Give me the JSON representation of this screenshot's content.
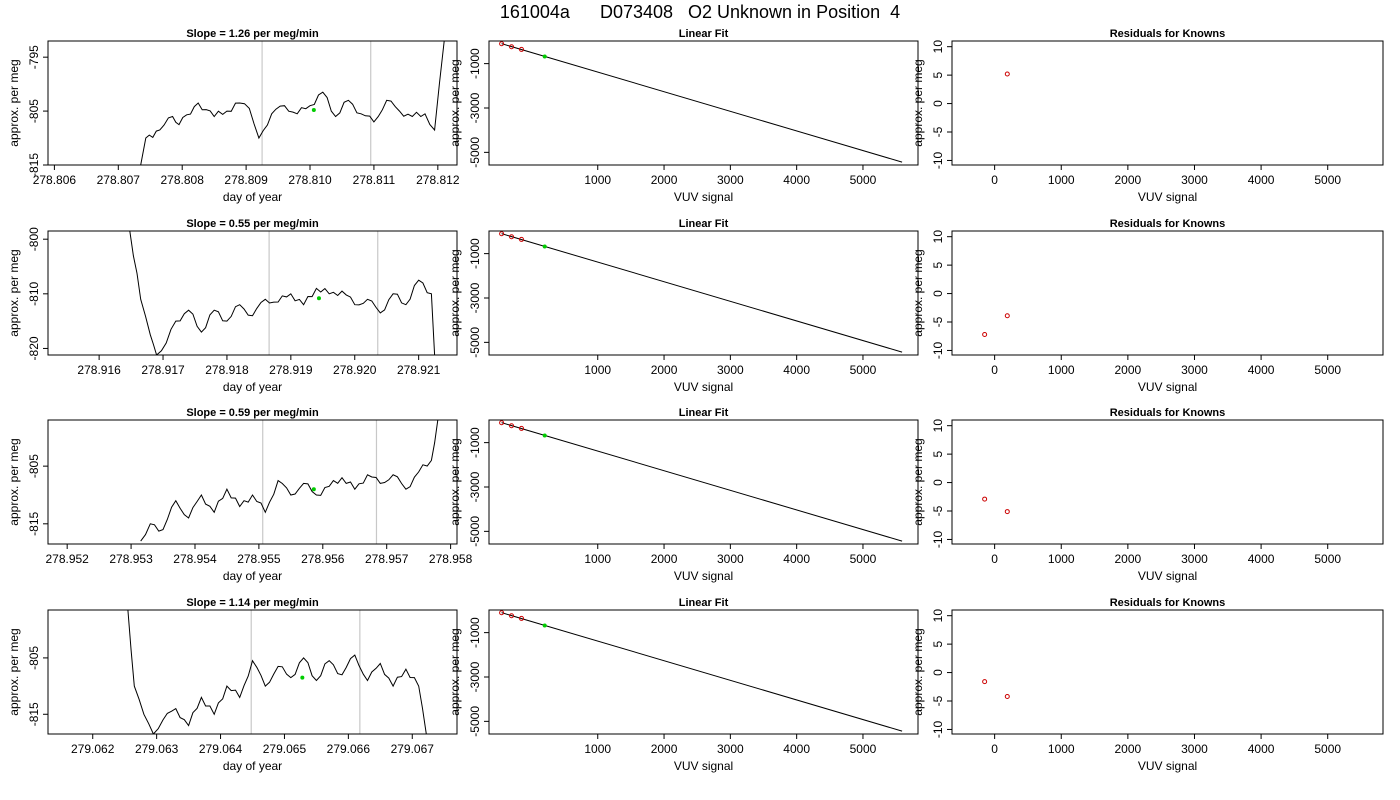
{
  "header": {
    "title": "161004a      D073408   O2 Unknown in Position  4"
  },
  "colors": {
    "trace": "#000000",
    "vline": "#c8c8c8",
    "marker": "#00cc00",
    "known_points": "#cc0000"
  },
  "chart_data": [
    {
      "type": "line",
      "row": 1,
      "panel": "time-series",
      "title": "Slope =  1.26  per meg/min",
      "xlabel": "day of year",
      "ylabel": "approx. per meg",
      "xlim": [
        278.8059,
        278.8123
      ],
      "ylim": [
        -815,
        -792
      ],
      "xticks": [
        "278.806",
        "278.807",
        "278.808",
        "278.809",
        "278.810",
        "278.811",
        "278.812"
      ],
      "yticks": [
        "-815",
        "-805",
        "-795"
      ],
      "vlines": [
        278.80925,
        278.81095
      ],
      "marker": {
        "x": 278.81006,
        "y": -804.8
      },
      "x": [
        278.80735,
        278.80743,
        278.80765,
        278.80785,
        278.80795,
        278.80825,
        278.8085,
        278.8087,
        278.8089,
        278.80905,
        278.8092,
        278.8094,
        278.8096,
        278.8098,
        278.81,
        278.8102,
        278.8104,
        278.8106,
        278.8108,
        278.811,
        278.8112,
        278.8114,
        278.8116,
        278.8118,
        278.81195,
        278.8121
      ],
      "y": [
        -815,
        -810,
        -808.5,
        -806,
        -807.5,
        -803.5,
        -806,
        -805,
        -803.5,
        -804.5,
        -810,
        -805.5,
        -804,
        -805.5,
        -804,
        -801.5,
        -806,
        -803,
        -805.5,
        -807,
        -803,
        -805,
        -806,
        -805.5,
        -808.5,
        -792
      ]
    },
    {
      "type": "line",
      "row": 1,
      "panel": "linear-fit",
      "title": "Linear Fit",
      "xlabel": "VUV signal",
      "ylabel": "approx. per meg",
      "xlim": [
        -640,
        5830
      ],
      "ylim": [
        -5570,
        20
      ],
      "xticks": [
        "1000",
        "2000",
        "3000",
        "4000",
        "5000"
      ],
      "xtick_values": [
        1000,
        2000,
        3000,
        4000,
        5000
      ],
      "yticks": [
        "-5000",
        "-3000",
        "-1000"
      ],
      "ytick_values": [
        -5000,
        -3000,
        -1000
      ],
      "fit_line": {
        "x": [
          -450,
          5590
        ],
        "y": [
          -100,
          -5440
        ]
      },
      "knowns": {
        "x": [
          -450,
          -300,
          -150
        ],
        "y": [
          -105,
          -240,
          -360
        ]
      },
      "unknown": {
        "x": 200,
        "y": -680
      }
    },
    {
      "type": "scatter",
      "row": 1,
      "panel": "residuals",
      "title": "Residuals for Knowns",
      "xlabel": "VUV signal",
      "ylabel": "approx. per meg",
      "xlim": [
        -640,
        5830
      ],
      "ylim": [
        -10.8,
        11
      ],
      "xticks": [
        "0",
        "1000",
        "2000",
        "3000",
        "4000",
        "5000"
      ],
      "xtick_values": [
        0,
        1000,
        2000,
        3000,
        4000,
        5000
      ],
      "yticks": [
        "-10",
        "-5",
        "0",
        "5",
        "10"
      ],
      "ytick_values": [
        -10,
        -5,
        0,
        5,
        10
      ],
      "points": {
        "x": [
          190
        ],
        "y": [
          5.2
        ]
      }
    },
    {
      "type": "line",
      "row": 2,
      "panel": "time-series",
      "title": "Slope =  0.55  per meg/min",
      "xlabel": "day of year",
      "ylabel": "approx. per meg",
      "xlim": [
        278.9152,
        278.9216
      ],
      "ylim": [
        -821.2,
        -798.5
      ],
      "xticks": [
        "278.916",
        "278.917",
        "278.918",
        "278.919",
        "278.920",
        "278.921"
      ],
      "yticks": [
        "-820",
        "-810",
        "-800"
      ],
      "vlines": [
        278.91866,
        278.92036
      ],
      "marker": {
        "x": 278.91944,
        "y": -810.8
      },
      "x": [
        278.91648,
        278.91665,
        278.9168,
        278.9169,
        278.91705,
        278.9172,
        278.9174,
        278.9176,
        278.9178,
        278.918,
        278.9182,
        278.9184,
        278.9186,
        278.9188,
        278.919,
        278.9192,
        278.9194,
        278.9196,
        278.9198,
        278.92,
        278.9202,
        278.9204,
        278.9206,
        278.9208,
        278.921,
        278.9212,
        278.92125
      ],
      "y": [
        -798.5,
        -811,
        -817.5,
        -821.2,
        -819,
        -815,
        -813,
        -817,
        -813,
        -815,
        -812,
        -814,
        -811,
        -811.5,
        -810,
        -812,
        -809,
        -810,
        -809.5,
        -812,
        -811,
        -813.5,
        -810,
        -812,
        -807.5,
        -810,
        -821.2
      ]
    },
    {
      "type": "line",
      "row": 2,
      "panel": "linear-fit",
      "title": "Linear Fit",
      "xlabel": "VUV signal",
      "ylabel": "approx. per meg",
      "xlim": [
        -640,
        5830
      ],
      "ylim": [
        -5570,
        20
      ],
      "xticks": [
        "1000",
        "2000",
        "3000",
        "4000",
        "5000"
      ],
      "xtick_values": [
        1000,
        2000,
        3000,
        4000,
        5000
      ],
      "yticks": [
        "-5000",
        "-3000",
        "-1000"
      ],
      "ytick_values": [
        -5000,
        -3000,
        -1000
      ],
      "fit_line": {
        "x": [
          -450,
          5590
        ],
        "y": [
          -100,
          -5440
        ]
      },
      "knowns": {
        "x": [
          -450,
          -300,
          -150
        ],
        "y": [
          -105,
          -240,
          -360
        ]
      },
      "unknown": {
        "x": 200,
        "y": -680
      }
    },
    {
      "type": "scatter",
      "row": 2,
      "panel": "residuals",
      "title": "Residuals for Knowns",
      "xlabel": "VUV signal",
      "ylabel": "approx. per meg",
      "xlim": [
        -640,
        5830
      ],
      "ylim": [
        -10.8,
        11
      ],
      "xticks": [
        "0",
        "1000",
        "2000",
        "3000",
        "4000",
        "5000"
      ],
      "xtick_values": [
        0,
        1000,
        2000,
        3000,
        4000,
        5000
      ],
      "yticks": [
        "-10",
        "-5",
        "0",
        "5",
        "10"
      ],
      "ytick_values": [
        -10,
        -5,
        0,
        5,
        10
      ],
      "points": {
        "x": [
          -150,
          190
        ],
        "y": [
          -7.2,
          -3.9
        ]
      }
    },
    {
      "type": "line",
      "row": 3,
      "panel": "time-series",
      "title": "Slope =  0.59  per meg/min",
      "xlabel": "day of year",
      "ylabel": "approx. per meg",
      "xlim": [
        278.9517,
        278.9581
      ],
      "ylim": [
        -818.5,
        -797
      ],
      "xticks": [
        "278.952",
        "278.953",
        "278.954",
        "278.955",
        "278.956",
        "278.957",
        "278.958"
      ],
      "yticks": [
        "-815",
        "-805"
      ],
      "vlines": [
        278.95506,
        278.95684
      ],
      "marker": {
        "x": 278.95586,
        "y": -809
      },
      "x": [
        278.95315,
        278.9533,
        278.9535,
        278.9537,
        278.9539,
        278.9541,
        278.9543,
        278.9545,
        278.9547,
        278.9549,
        278.9551,
        278.9553,
        278.9555,
        278.9557,
        278.9559,
        278.9561,
        278.9563,
        278.9565,
        278.9567,
        278.9569,
        278.9571,
        278.9573,
        278.9575,
        278.9577,
        278.9578
      ],
      "y": [
        -818,
        -815,
        -816,
        -811,
        -814,
        -810,
        -813,
        -809,
        -812,
        -810,
        -813,
        -807.5,
        -810,
        -808,
        -810,
        -808.5,
        -807,
        -809,
        -806.5,
        -808,
        -806.5,
        -809,
        -806,
        -804,
        -797
      ]
    },
    {
      "type": "line",
      "row": 3,
      "panel": "linear-fit",
      "title": "Linear Fit",
      "xlabel": "VUV signal",
      "ylabel": "approx. per meg",
      "xlim": [
        -640,
        5830
      ],
      "ylim": [
        -5570,
        20
      ],
      "xticks": [
        "1000",
        "2000",
        "3000",
        "4000",
        "5000"
      ],
      "xtick_values": [
        1000,
        2000,
        3000,
        4000,
        5000
      ],
      "yticks": [
        "-5000",
        "-3000",
        "-1000"
      ],
      "ytick_values": [
        -5000,
        -3000,
        -1000
      ],
      "fit_line": {
        "x": [
          -450,
          5590
        ],
        "y": [
          -100,
          -5440
        ]
      },
      "knowns": {
        "x": [
          -450,
          -300,
          -150
        ],
        "y": [
          -105,
          -240,
          -360
        ]
      },
      "unknown": {
        "x": 200,
        "y": -680
      }
    },
    {
      "type": "scatter",
      "row": 3,
      "panel": "residuals",
      "title": "Residuals for Knowns",
      "xlabel": "VUV signal",
      "ylabel": "approx. per meg",
      "xlim": [
        -640,
        5830
      ],
      "ylim": [
        -10.8,
        11
      ],
      "xticks": [
        "0",
        "1000",
        "2000",
        "3000",
        "4000",
        "5000"
      ],
      "xtick_values": [
        0,
        1000,
        2000,
        3000,
        4000,
        5000
      ],
      "yticks": [
        "-10",
        "-5",
        "0",
        "5",
        "10"
      ],
      "ytick_values": [
        -10,
        -5,
        0,
        5,
        10
      ],
      "points": {
        "x": [
          -150,
          190
        ],
        "y": [
          -2.9,
          -5.1
        ]
      }
    },
    {
      "type": "line",
      "row": 4,
      "panel": "time-series",
      "title": "Slope =  1.14  per meg/min",
      "xlabel": "day of year",
      "ylabel": "approx. per meg",
      "xlim": [
        279.0613,
        279.0677
      ],
      "ylim": [
        -818.5,
        -796.5
      ],
      "xticks": [
        "279.062",
        "279.063",
        "279.064",
        "279.065",
        "279.066",
        "279.067"
      ],
      "yticks": [
        "-815",
        "-805"
      ],
      "vlines": [
        279.06448,
        279.06618
      ],
      "marker": {
        "x": 279.06528,
        "y": -808.5
      },
      "x": [
        279.06255,
        279.06265,
        279.0628,
        279.06295,
        279.0631,
        279.0633,
        279.0635,
        279.0637,
        279.0639,
        279.0641,
        279.0643,
        279.0645,
        279.0647,
        279.0649,
        279.0651,
        279.0653,
        279.0655,
        279.0657,
        279.0659,
        279.0661,
        279.0663,
        279.0665,
        279.0667,
        279.0669,
        279.0671,
        279.06722
      ],
      "y": [
        -796.5,
        -810,
        -815,
        -818.5,
        -816,
        -814,
        -817,
        -812,
        -815,
        -810,
        -812,
        -805.5,
        -810,
        -806.5,
        -808.5,
        -805,
        -809,
        -805.5,
        -808,
        -804.5,
        -809,
        -806,
        -810,
        -807,
        -810,
        -818.5
      ]
    },
    {
      "type": "line",
      "row": 4,
      "panel": "linear-fit",
      "title": "Linear Fit",
      "xlabel": "VUV signal",
      "ylabel": "approx. per meg",
      "xlim": [
        -640,
        5830
      ],
      "ylim": [
        -5570,
        20
      ],
      "xticks": [
        "1000",
        "2000",
        "3000",
        "4000",
        "5000"
      ],
      "xtick_values": [
        1000,
        2000,
        3000,
        4000,
        5000
      ],
      "yticks": [
        "-5000",
        "-3000",
        "-1000"
      ],
      "ytick_values": [
        -5000,
        -3000,
        -1000
      ],
      "fit_line": {
        "x": [
          -450,
          5590
        ],
        "y": [
          -100,
          -5440
        ]
      },
      "knowns": {
        "x": [
          -450,
          -300,
          -150
        ],
        "y": [
          -105,
          -240,
          -360
        ]
      },
      "unknown": {
        "x": 200,
        "y": -680
      }
    },
    {
      "type": "scatter",
      "row": 4,
      "panel": "residuals",
      "title": "Residuals for Knowns",
      "xlabel": "VUV signal",
      "ylabel": "approx. per meg",
      "xlim": [
        -640,
        5830
      ],
      "ylim": [
        -10.8,
        11
      ],
      "xticks": [
        "0",
        "1000",
        "2000",
        "3000",
        "4000",
        "5000"
      ],
      "xtick_values": [
        0,
        1000,
        2000,
        3000,
        4000,
        5000
      ],
      "yticks": [
        "-10",
        "-5",
        "0",
        "5",
        "10"
      ],
      "ytick_values": [
        -10,
        -5,
        0,
        5,
        10
      ],
      "points": {
        "x": [
          -150,
          190
        ],
        "y": [
          -1.6,
          -4.2
        ]
      }
    }
  ]
}
